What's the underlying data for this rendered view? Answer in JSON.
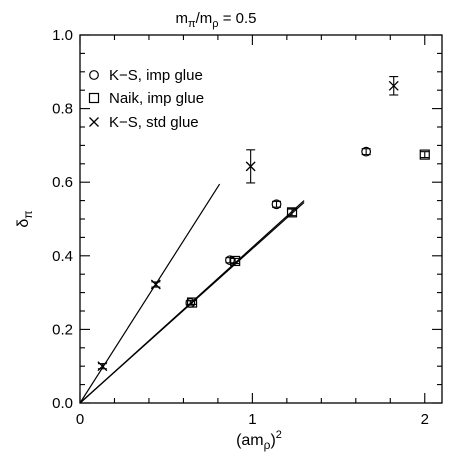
{
  "chart_data": {
    "type": "scatter",
    "title": "mπ/mρ = 0.5",
    "title_parts": {
      "m": "m",
      "pi": "π",
      "slash": "/m",
      "rho": "ρ",
      "eq": " = 0.5"
    },
    "xlabel": "(amρ)²",
    "xlabel_parts": {
      "open": "(am",
      "rho": "ρ",
      "close": ")",
      "sup": "2"
    },
    "ylabel": "δπ",
    "ylabel_parts": {
      "delta": "δ",
      "pi": "π"
    },
    "xlim": [
      0,
      2.1
    ],
    "ylim": [
      0,
      1.0
    ],
    "x_ticks": [
      0,
      1,
      2
    ],
    "x_tick_labels": [
      "0",
      "1",
      "2"
    ],
    "y_ticks": [
      0.0,
      0.2,
      0.4,
      0.6,
      0.8,
      1.0
    ],
    "y_tick_labels": [
      "0.0",
      "0.2",
      "0.4",
      "0.6",
      "0.8",
      "1.0"
    ],
    "grid": false,
    "legend_position": "top-left",
    "series": [
      {
        "name": "K−S, imp glue",
        "marker": "circle",
        "points": [
          {
            "x": 0.64,
            "y": 0.272,
            "err": 0.006
          },
          {
            "x": 0.87,
            "y": 0.388,
            "err": 0.007
          },
          {
            "x": 1.14,
            "y": 0.54,
            "err": 0.008
          },
          {
            "x": 1.66,
            "y": 0.683,
            "err": 0.008
          }
        ],
        "fit_line": {
          "x": [
            0,
            1.3
          ],
          "y": [
            0,
            0.55
          ]
        }
      },
      {
        "name": "Naik, imp glue",
        "marker": "square",
        "points": [
          {
            "x": 0.65,
            "y": 0.273,
            "err": 0.005
          },
          {
            "x": 0.9,
            "y": 0.386,
            "err": 0.007
          },
          {
            "x": 1.23,
            "y": 0.518,
            "err": 0.009
          },
          {
            "x": 2.0,
            "y": 0.675,
            "err": 0.008
          }
        ],
        "fit_line": {
          "x": [
            0,
            1.3
          ],
          "y": [
            0,
            0.545
          ]
        }
      },
      {
        "name": "K−S, std glue",
        "marker": "cross",
        "points": [
          {
            "x": 0.13,
            "y": 0.1,
            "err": 0.007
          },
          {
            "x": 0.44,
            "y": 0.322,
            "err": 0.007
          },
          {
            "x": 0.99,
            "y": 0.643,
            "err": 0.045
          },
          {
            "x": 1.82,
            "y": 0.862,
            "err": 0.025
          }
        ],
        "fit_line": {
          "x": [
            0,
            0.81
          ],
          "y": [
            0,
            0.595
          ]
        }
      }
    ]
  }
}
